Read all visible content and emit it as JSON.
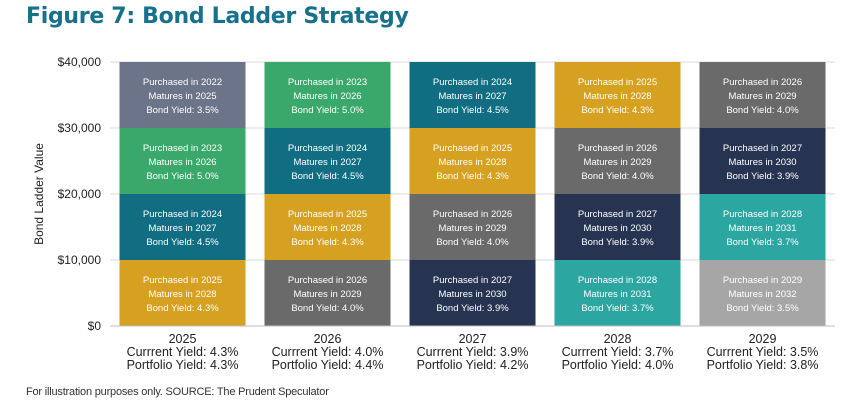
{
  "title": "Figure 7: Bond Ladder Strategy",
  "footnote": "For illustration purposes only. SOURCE: The Prudent Speculator",
  "chart_data": {
    "type": "bar",
    "stacked": true,
    "title": "Figure 7: Bond Ladder Strategy",
    "ylabel": "Bond Ladder Value",
    "xlabel": "",
    "ylim": [
      0,
      40000
    ],
    "yticks": [
      "$0",
      "$10,000",
      "$20,000",
      "$30,000",
      "$40,000"
    ],
    "ytick_values": [
      0,
      10000,
      20000,
      30000,
      40000
    ],
    "grid": true,
    "categories": [
      "2025",
      "2026",
      "2027",
      "2028",
      "2029"
    ],
    "current_yield": [
      "Currrent Yield: 4.3%",
      "Currrent Yield: 4.0%",
      "Currrent Yield: 3.9%",
      "Currrent Yield: 3.7%",
      "Currrent Yield: 3.5%"
    ],
    "portfolio_yield": [
      "Portfolio Yield: 4.3%",
      "Portfolio Yield: 4.4%",
      "Portfolio Yield: 4.2%",
      "Portfolio Yield: 4.0%",
      "Portfolio Yield: 3.8%"
    ],
    "bond_colors": {
      "2022": "#6b7488",
      "2023": "#3aa86b",
      "2024": "#116e82",
      "2025": "#d6a021",
      "2026": "#6a6a6a",
      "2027": "#263452",
      "2028": "#2ba6a1",
      "2029": "#a6a6a6"
    },
    "columns": [
      {
        "year": "2025",
        "segments": [
          {
            "value": 10000,
            "purchased": "Purchased in 2025",
            "matures": "Matures in 2028",
            "yield": "Bond Yield: 4.3%"
          },
          {
            "value": 10000,
            "purchased": "Purchased in 2024",
            "matures": "Matures in 2027",
            "yield": "Bond Yield: 4.5%"
          },
          {
            "value": 10000,
            "purchased": "Purchased in 2023",
            "matures": "Matures in 2026",
            "yield": "Bond Yield: 5.0%"
          },
          {
            "value": 10000,
            "purchased": "Purchased in 2022",
            "matures": "Matures in 2025",
            "yield": "Bond Yield: 3.5%"
          }
        ]
      },
      {
        "year": "2026",
        "segments": [
          {
            "value": 10000,
            "purchased": "Purchased in 2026",
            "matures": "Matures in 2029",
            "yield": "Bond Yield: 4.0%"
          },
          {
            "value": 10000,
            "purchased": "Purchased in 2025",
            "matures": "Matures in 2028",
            "yield": "Bond Yield: 4.3%"
          },
          {
            "value": 10000,
            "purchased": "Purchased in 2024",
            "matures": "Matures in 2027",
            "yield": "Bond Yield: 4.5%"
          },
          {
            "value": 10000,
            "purchased": "Purchased in 2023",
            "matures": "Matures in 2026",
            "yield": "Bond Yield: 5.0%"
          }
        ]
      },
      {
        "year": "2027",
        "segments": [
          {
            "value": 10000,
            "purchased": "Purchased in 2027",
            "matures": "Matures in 2030",
            "yield": "Bond Yield: 3.9%"
          },
          {
            "value": 10000,
            "purchased": "Purchased in 2026",
            "matures": "Matures in 2029",
            "yield": "Bond Yield: 4.0%"
          },
          {
            "value": 10000,
            "purchased": "Purchased in 2025",
            "matures": "Matures in 2028",
            "yield": "Bond Yield: 4.3%"
          },
          {
            "value": 10000,
            "purchased": "Purchased in 2024",
            "matures": "Matures in 2027",
            "yield": "Bond Yield: 4.5%"
          }
        ]
      },
      {
        "year": "2028",
        "segments": [
          {
            "value": 10000,
            "purchased": "Purchased in 2028",
            "matures": "Matures in 2031",
            "yield": "Bond Yield: 3.7%"
          },
          {
            "value": 10000,
            "purchased": "Purchased in 2027",
            "matures": "Matures in 2030",
            "yield": "Bond Yield: 3.9%"
          },
          {
            "value": 10000,
            "purchased": "Purchased in 2026",
            "matures": "Matures in 2029",
            "yield": "Bond Yield: 4.0%"
          },
          {
            "value": 10000,
            "purchased": "Purchased in 2025",
            "matures": "Matures in 2028",
            "yield": "Bond Yield: 4.3%"
          }
        ]
      },
      {
        "year": "2029",
        "segments": [
          {
            "value": 10000,
            "purchased": "Purchased in 2029",
            "matures": "Matures in 2032",
            "yield": "Bond Yield: 3.5%"
          },
          {
            "value": 10000,
            "purchased": "Purchased in 2028",
            "matures": "Matures in 2031",
            "yield": "Bond Yield: 3.7%"
          },
          {
            "value": 10000,
            "purchased": "Purchased in 2027",
            "matures": "Matures in 2030",
            "yield": "Bond Yield: 3.9%"
          },
          {
            "value": 10000,
            "purchased": "Purchased in 2026",
            "matures": "Matures in 2029",
            "yield": "Bond Yield: 4.0%"
          }
        ]
      }
    ]
  }
}
